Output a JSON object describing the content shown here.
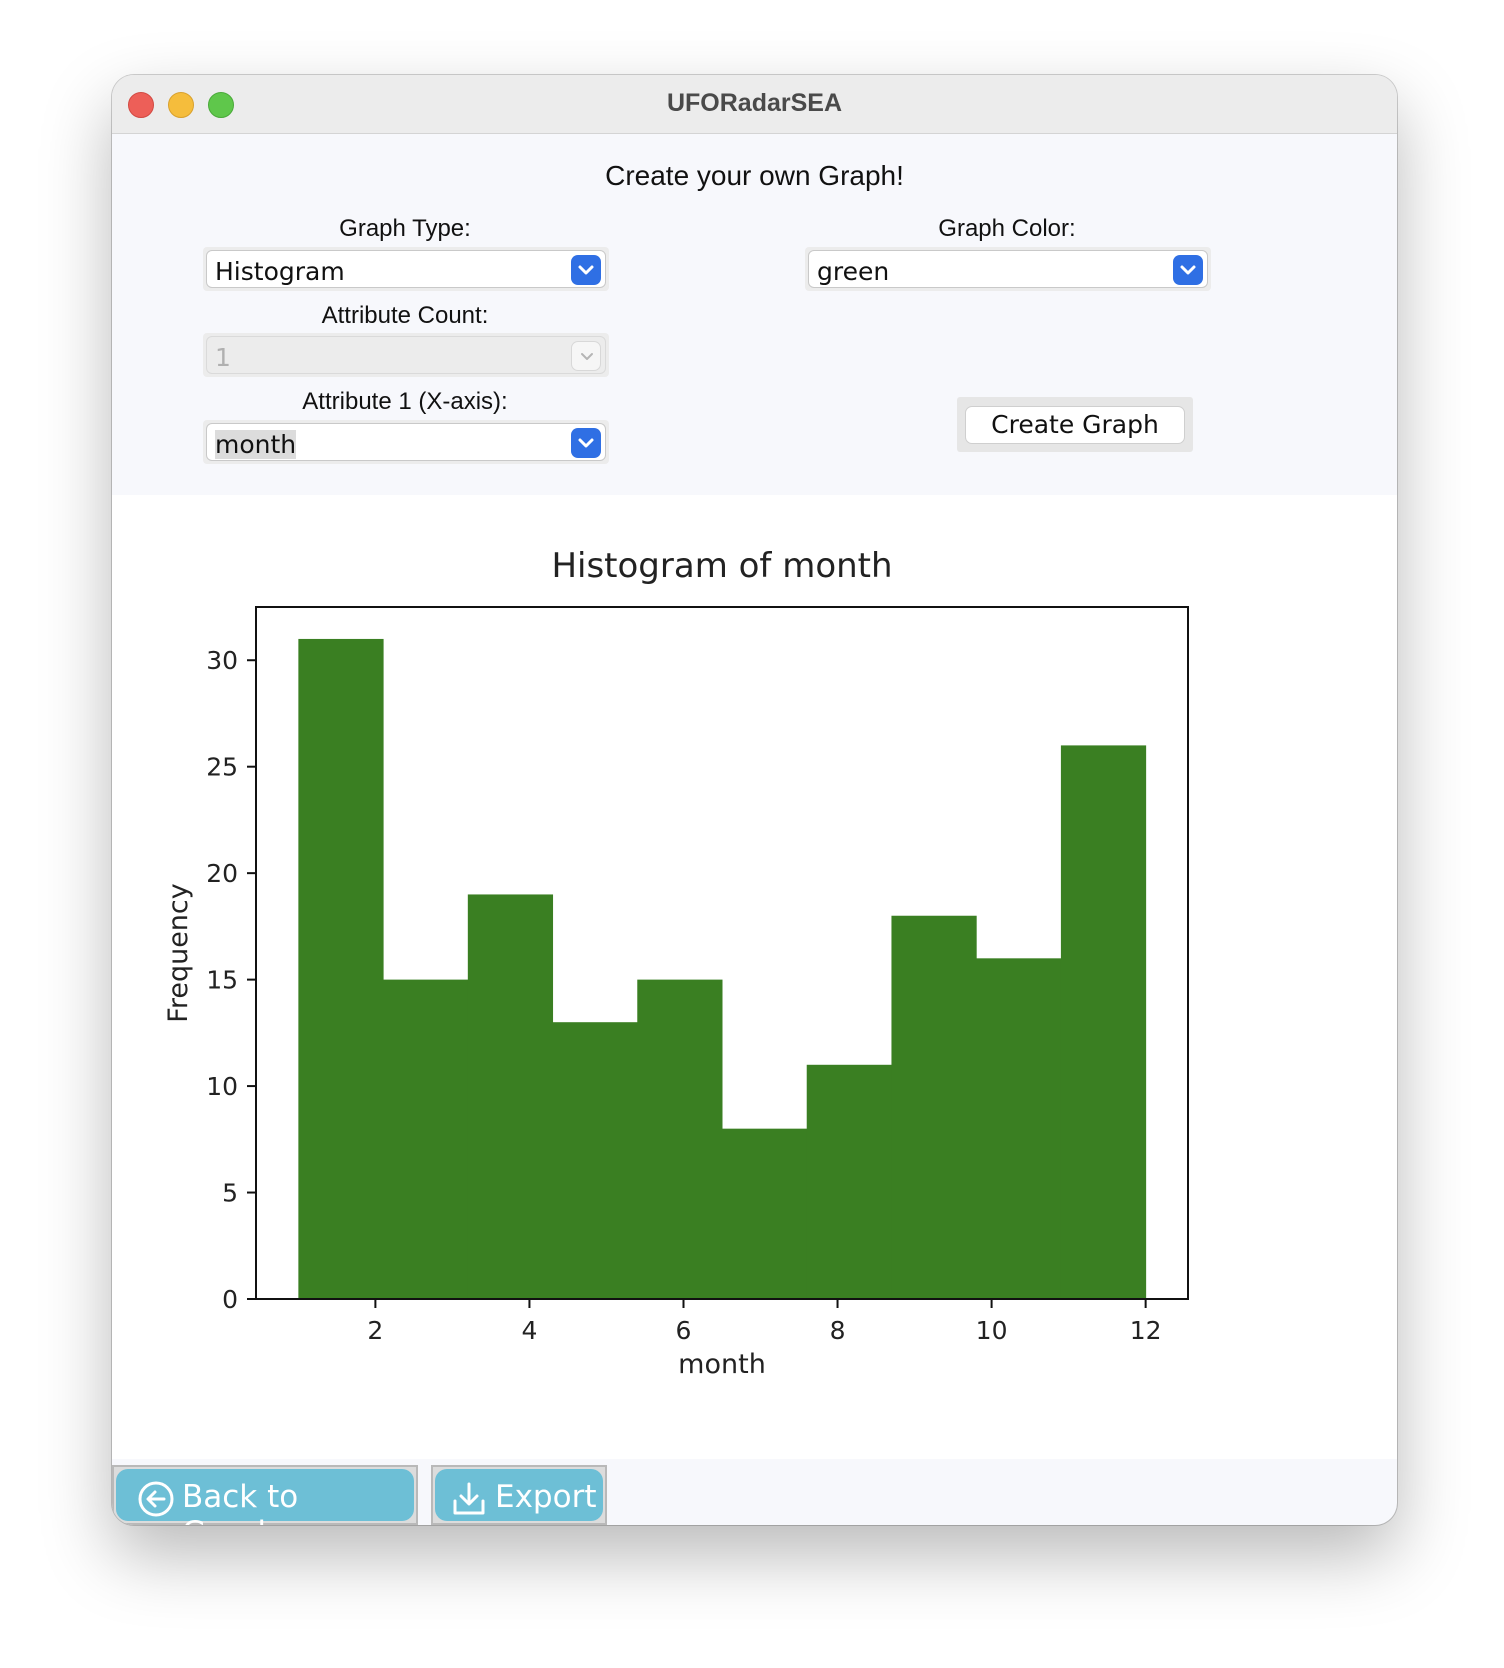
{
  "window": {
    "title": "UFORadarSEA"
  },
  "heading": "Create your own Graph!",
  "controls": {
    "graph_type": {
      "label": "Graph Type:",
      "value": "Histogram"
    },
    "graph_color": {
      "label": "Graph Color:",
      "value": "green"
    },
    "attribute_count": {
      "label": "Attribute Count:",
      "value": "1"
    },
    "attribute_1": {
      "label": "Attribute 1 (X-axis):",
      "value": "month"
    },
    "create_button": "Create Graph"
  },
  "footer": {
    "back_button": "Back to Graphs",
    "export_button": "Export",
    "back_icon": "arrow-left-circle-icon",
    "export_icon": "download-tray-icon"
  },
  "colors": {
    "bar": "#3a7f22",
    "accent": "#2f6fe4",
    "footer_button": "#6dbfd6"
  },
  "chart_data": {
    "type": "bar",
    "title": "Histogram of month",
    "xlabel": "month",
    "ylabel": "Frequency",
    "bins": [
      {
        "start": 1.0,
        "end": 2.1,
        "value": 31
      },
      {
        "start": 2.1,
        "end": 3.2,
        "value": 15
      },
      {
        "start": 3.2,
        "end": 4.3,
        "value": 19
      },
      {
        "start": 4.3,
        "end": 5.4,
        "value": 13
      },
      {
        "start": 5.4,
        "end": 6.5,
        "value": 15
      },
      {
        "start": 6.5,
        "end": 7.6,
        "value": 8
      },
      {
        "start": 7.6,
        "end": 8.7,
        "value": 11
      },
      {
        "start": 8.7,
        "end": 9.8,
        "value": 18
      },
      {
        "start": 9.8,
        "end": 10.9,
        "value": 16
      },
      {
        "start": 10.9,
        "end": 12.0,
        "value": 26
      }
    ],
    "xlim": [
      0.45,
      12.55
    ],
    "ylim": [
      0,
      32.5
    ],
    "xticks": [
      2,
      4,
      6,
      8,
      10,
      12
    ],
    "yticks": [
      0,
      5,
      10,
      15,
      20,
      25,
      30
    ],
    "grid": false,
    "legend": "none"
  }
}
